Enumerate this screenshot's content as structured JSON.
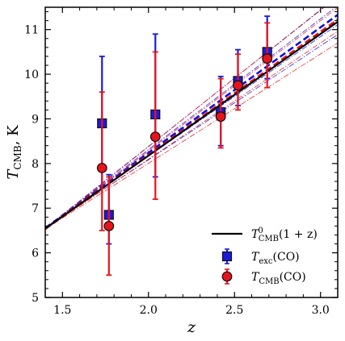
{
  "chart_data": {
    "type": "scatter",
    "title": "",
    "xlabel": "z",
    "ylabel": "T_CMB, K",
    "xlim": [
      1.4,
      3.1
    ],
    "ylim": [
      5,
      11.5
    ],
    "xticks": [
      "1.5",
      "2.0",
      "2.5",
      "3.0"
    ],
    "xtick_values": [
      1.5,
      2.0,
      2.5,
      3.0
    ],
    "yticks": [
      "5",
      "6",
      "7",
      "8",
      "9",
      "10",
      "11"
    ],
    "ytick_values": [
      5,
      6,
      7,
      8,
      9,
      10,
      11
    ],
    "grid": false,
    "legend_position": "bottom-right",
    "legend": [
      {
        "label": "T⁰CMB(1 + z)",
        "marker": "line",
        "color": "#000000"
      },
      {
        "label": "Texc(CO)",
        "marker": "square",
        "color": "#1c1cdc"
      },
      {
        "label": "TCMB(CO)",
        "marker": "circle",
        "color": "#e8141c"
      }
    ],
    "model_line": {
      "name": "T⁰CMB(1 + z)",
      "T0": 2.7255,
      "color": "#000000"
    },
    "fits": [
      {
        "series": "Texc(CO)",
        "color": "#1010e0",
        "slope": 2.81,
        "intercept": 2.62,
        "slope_low": 2.55,
        "slope_high": 3.05
      },
      {
        "series": "TCMB(CO)",
        "color": "#e81010",
        "slope": 2.76,
        "intercept": 2.67,
        "slope_low": 2.45,
        "slope_high": 3.07
      }
    ],
    "series": [
      {
        "name": "Texc(CO)",
        "marker": "square",
        "color": "#1c1cdc",
        "points": [
          {
            "x": 1.73,
            "y": 8.9,
            "ylo": 7.5,
            "yhi": 10.4
          },
          {
            "x": 1.77,
            "y": 6.85,
            "ylo": 6.2,
            "yhi": 7.75
          },
          {
            "x": 2.04,
            "y": 9.1,
            "ylo": 7.7,
            "yhi": 10.9
          },
          {
            "x": 2.42,
            "y": 9.15,
            "ylo": 8.4,
            "yhi": 9.95
          },
          {
            "x": 2.52,
            "y": 9.85,
            "ylo": 9.3,
            "yhi": 10.55
          },
          {
            "x": 2.69,
            "y": 10.5,
            "ylo": 9.9,
            "yhi": 11.3
          }
        ]
      },
      {
        "name": "TCMB(CO)",
        "marker": "circle",
        "color": "#e8141c",
        "points": [
          {
            "x": 1.73,
            "y": 7.9,
            "ylo": 6.5,
            "yhi": 9.6
          },
          {
            "x": 1.77,
            "y": 6.6,
            "ylo": 5.5,
            "yhi": 7.7
          },
          {
            "x": 2.04,
            "y": 8.6,
            "ylo": 7.2,
            "yhi": 10.5
          },
          {
            "x": 2.42,
            "y": 9.05,
            "ylo": 8.35,
            "yhi": 9.9
          },
          {
            "x": 2.52,
            "y": 9.75,
            "ylo": 9.2,
            "yhi": 10.45
          },
          {
            "x": 2.69,
            "y": 10.35,
            "ylo": 9.7,
            "yhi": 11.15
          }
        ]
      }
    ]
  }
}
